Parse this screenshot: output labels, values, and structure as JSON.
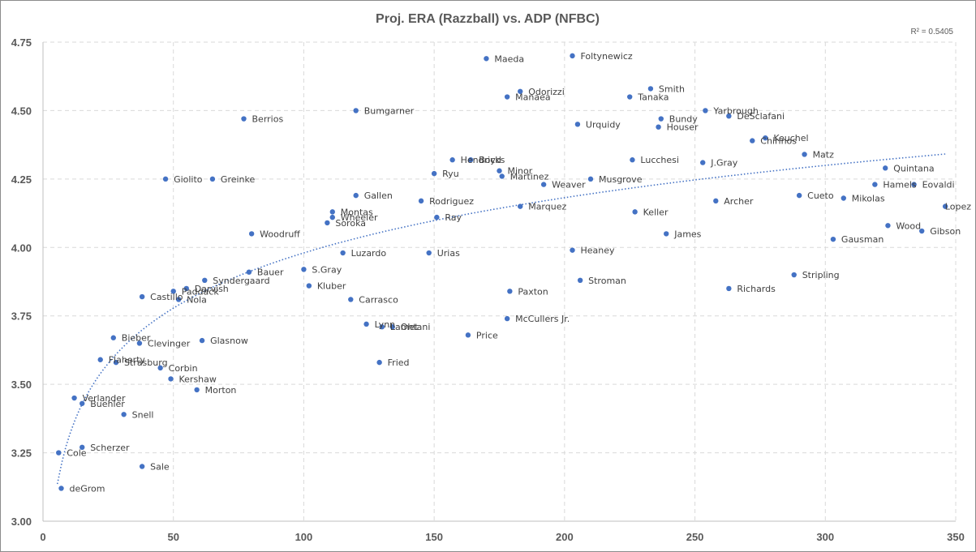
{
  "chart_data": {
    "type": "scatter",
    "title": "Proj. ERA (Razzball) vs. ADP (NFBC)",
    "xlabel": "",
    "ylabel": "",
    "xlim": [
      0,
      350
    ],
    "ylim": [
      3.0,
      4.75
    ],
    "x_ticks": [
      "0",
      "50",
      "100",
      "150",
      "200",
      "250",
      "300",
      "350"
    ],
    "y_ticks": [
      "3.00",
      "3.25",
      "3.50",
      "3.75",
      "4.00",
      "4.25",
      "4.50",
      "4.75"
    ],
    "grid": true,
    "legend": "none",
    "marker_color": "#4472c4",
    "trendline": {
      "type": "logarithmic",
      "style": "dotted",
      "color": "#4472c4",
      "r_squared_label": "R² = 0.5405",
      "x_range": [
        5.5,
        346
      ]
    },
    "points": [
      {
        "name": "deGrom",
        "x": 7,
        "y": 3.12
      },
      {
        "name": "Cole",
        "x": 6,
        "y": 3.25
      },
      {
        "name": "Scherzer",
        "x": 15,
        "y": 3.27
      },
      {
        "name": "Verlander",
        "x": 12,
        "y": 3.45
      },
      {
        "name": "Buehler",
        "x": 15,
        "y": 3.43
      },
      {
        "name": "Sale",
        "x": 38,
        "y": 3.2
      },
      {
        "name": "Snell",
        "x": 31,
        "y": 3.39
      },
      {
        "name": "Flaherty",
        "x": 22,
        "y": 3.59
      },
      {
        "name": "Strasburg",
        "x": 28,
        "y": 3.58
      },
      {
        "name": "Bieber",
        "x": 27,
        "y": 3.67
      },
      {
        "name": "Clevinger",
        "x": 37,
        "y": 3.65
      },
      {
        "name": "Corbin",
        "x": 45,
        "y": 3.56
      },
      {
        "name": "Kershaw",
        "x": 49,
        "y": 3.52
      },
      {
        "name": "Morton",
        "x": 59,
        "y": 3.48
      },
      {
        "name": "Glasnow",
        "x": 61,
        "y": 3.66
      },
      {
        "name": "Castillo",
        "x": 38,
        "y": 3.82
      },
      {
        "name": "Nola",
        "x": 52,
        "y": 3.81
      },
      {
        "name": "Paddack",
        "x": 50,
        "y": 3.84
      },
      {
        "name": "Darvish",
        "x": 55,
        "y": 3.85
      },
      {
        "name": "Syndergaard",
        "x": 62,
        "y": 3.88
      },
      {
        "name": "Bauer",
        "x": 79,
        "y": 3.91
      },
      {
        "name": "Giolito",
        "x": 47,
        "y": 4.25
      },
      {
        "name": "Greinke",
        "x": 65,
        "y": 4.25
      },
      {
        "name": "Berrios",
        "x": 77,
        "y": 4.47
      },
      {
        "name": "Woodruff",
        "x": 80,
        "y": 4.05
      },
      {
        "name": "S.Gray",
        "x": 100,
        "y": 3.92
      },
      {
        "name": "Kluber",
        "x": 102,
        "y": 3.86
      },
      {
        "name": "Soroka",
        "x": 109,
        "y": 4.09
      },
      {
        "name": "Wheeler",
        "x": 111,
        "y": 4.11
      },
      {
        "name": "Montas",
        "x": 111,
        "y": 4.13
      },
      {
        "name": "Luzardo",
        "x": 115,
        "y": 3.98
      },
      {
        "name": "Carrasco",
        "x": 118,
        "y": 3.81
      },
      {
        "name": "Gallen",
        "x": 120,
        "y": 4.19
      },
      {
        "name": "Bumgarner",
        "x": 120,
        "y": 4.5
      },
      {
        "name": "Lynn",
        "x": 124,
        "y": 3.72
      },
      {
        "name": "Fried",
        "x": 129,
        "y": 3.58
      },
      {
        "name": "Lamet",
        "x": 130,
        "y": 3.71
      },
      {
        "name": "Ohtani",
        "x": 134,
        "y": 3.71
      },
      {
        "name": "Rodriguez",
        "x": 145,
        "y": 4.17
      },
      {
        "name": "Urias",
        "x": 148,
        "y": 3.98
      },
      {
        "name": "Ryu",
        "x": 150,
        "y": 4.27
      },
      {
        "name": "Ray",
        "x": 151,
        "y": 4.11
      },
      {
        "name": "Hendricks",
        "x": 157,
        "y": 4.32
      },
      {
        "name": "Price",
        "x": 163,
        "y": 3.68
      },
      {
        "name": "Boyd",
        "x": 164,
        "y": 4.32
      },
      {
        "name": "Maeda",
        "x": 170,
        "y": 4.69
      },
      {
        "name": "Minor",
        "x": 175,
        "y": 4.28
      },
      {
        "name": "Martinez",
        "x": 176,
        "y": 4.26
      },
      {
        "name": "Manaea",
        "x": 178,
        "y": 4.55
      },
      {
        "name": "McCullers Jr.",
        "x": 178,
        "y": 3.74
      },
      {
        "name": "Paxton",
        "x": 179,
        "y": 3.84
      },
      {
        "name": "Odorizzi",
        "x": 183,
        "y": 4.57
      },
      {
        "name": "Marquez",
        "x": 183,
        "y": 4.15
      },
      {
        "name": "Weaver",
        "x": 192,
        "y": 4.23
      },
      {
        "name": "Foltynewicz",
        "x": 203,
        "y": 4.7
      },
      {
        "name": "Heaney",
        "x": 203,
        "y": 3.99
      },
      {
        "name": "Urquidy",
        "x": 205,
        "y": 4.45
      },
      {
        "name": "Stroman",
        "x": 206,
        "y": 3.88
      },
      {
        "name": "Musgrove",
        "x": 210,
        "y": 4.25
      },
      {
        "name": "Tanaka",
        "x": 225,
        "y": 4.55
      },
      {
        "name": "Lucchesi",
        "x": 226,
        "y": 4.32
      },
      {
        "name": "Keller",
        "x": 227,
        "y": 4.13
      },
      {
        "name": "Smith",
        "x": 233,
        "y": 4.58
      },
      {
        "name": "Houser",
        "x": 236,
        "y": 4.44
      },
      {
        "name": "Bundy",
        "x": 237,
        "y": 4.47
      },
      {
        "name": "James",
        "x": 239,
        "y": 4.05
      },
      {
        "name": "J.Gray",
        "x": 253,
        "y": 4.31
      },
      {
        "name": "Yarbrough",
        "x": 254,
        "y": 4.5
      },
      {
        "name": "Archer",
        "x": 258,
        "y": 4.17
      },
      {
        "name": "Richards",
        "x": 263,
        "y": 3.85
      },
      {
        "name": "DeSclafani",
        "x": 263,
        "y": 4.48
      },
      {
        "name": "Chirinos",
        "x": 272,
        "y": 4.39
      },
      {
        "name": "Keuchel",
        "x": 277,
        "y": 4.4
      },
      {
        "name": "Stripling",
        "x": 288,
        "y": 3.9
      },
      {
        "name": "Cueto",
        "x": 290,
        "y": 4.19
      },
      {
        "name": "Matz",
        "x": 292,
        "y": 4.34
      },
      {
        "name": "Gausman",
        "x": 303,
        "y": 4.03
      },
      {
        "name": "Mikolas",
        "x": 307,
        "y": 4.18
      },
      {
        "name": "Hamels",
        "x": 319,
        "y": 4.23
      },
      {
        "name": "Quintana",
        "x": 323,
        "y": 4.29
      },
      {
        "name": "Wood",
        "x": 324,
        "y": 4.08
      },
      {
        "name": "Eovaldi",
        "x": 334,
        "y": 4.23
      },
      {
        "name": "Gibson",
        "x": 337,
        "y": 4.06
      },
      {
        "name": "Lopez",
        "x": 346,
        "y": 4.15
      }
    ]
  }
}
